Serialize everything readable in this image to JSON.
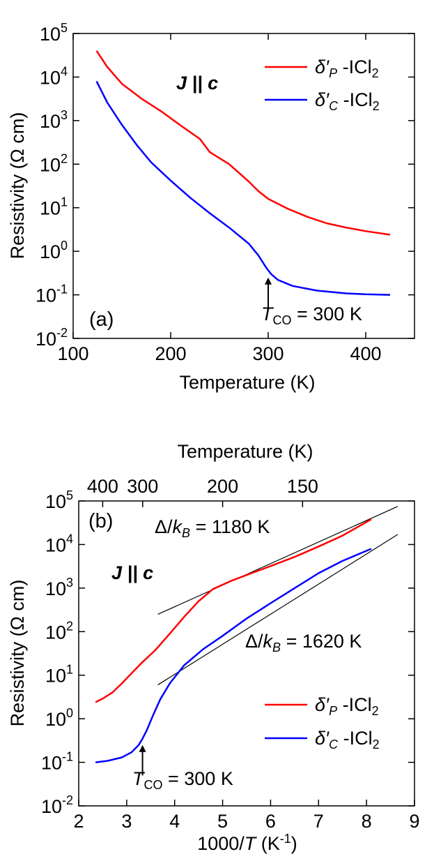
{
  "chart_data": [
    {
      "type": "line",
      "panel_label": "(a)",
      "xlabel": "Temperature (K)",
      "ylabel": "Resistivity (Ω cm)",
      "yscale": "log",
      "xlim": [
        100,
        450
      ],
      "ylim": [
        0.01,
        100000
      ],
      "x_ticks": [
        100,
        200,
        300,
        400
      ],
      "x_tick_labels": [
        "100",
        "200",
        "300",
        "400"
      ],
      "y_ticks": [
        0.01,
        0.1,
        1,
        10,
        100,
        1000,
        10000,
        100000
      ],
      "y_tick_labels": [
        {
          "base": "10",
          "exp": "-2"
        },
        {
          "base": "10",
          "exp": "-1"
        },
        {
          "base": "10",
          "exp": "0"
        },
        {
          "base": "10",
          "exp": "1"
        },
        {
          "base": "10",
          "exp": "2"
        },
        {
          "base": "10",
          "exp": "3"
        },
        {
          "base": "10",
          "exp": "4"
        },
        {
          "base": "10",
          "exp": "5"
        }
      ],
      "annotation_jc": {
        "pre": "J",
        "mid": " || ",
        "post": "c"
      },
      "tco_annotation": {
        "sym": "T",
        "sub": "CO",
        "tail": " = 300 K",
        "arrow_x": 300,
        "arrow_y_from": 0.05,
        "arrow_y_to": 0.25
      },
      "series": [
        {
          "name": "δ′P -ICl2",
          "color": "#ff0000",
          "legend": {
            "sym": "δ′",
            "sub1": "P",
            "mid": " -ICl",
            "sub2": "2"
          },
          "x": [
            124,
            135,
            150,
            170,
            190,
            210,
            230,
            240,
            260,
            280,
            290,
            300,
            320,
            340,
            360,
            380,
            400,
            425
          ],
          "y": [
            40000,
            17000,
            7000,
            3200,
            1650,
            780,
            380,
            190,
            100,
            40,
            24,
            16,
            9.5,
            6.2,
            4.4,
            3.5,
            2.9,
            2.4
          ]
        },
        {
          "name": "δ′C -ICl2",
          "color": "#0000ff",
          "legend": {
            "sym": "δ′",
            "sub1": "C",
            "mid": " -ICl",
            "sub2": "2"
          },
          "x": [
            124,
            135,
            150,
            165,
            180,
            200,
            220,
            240,
            260,
            280,
            290,
            298,
            303,
            310,
            325,
            350,
            380,
            400,
            425
          ],
          "y": [
            8000,
            2600,
            800,
            280,
            110,
            42,
            17,
            7.5,
            3.5,
            1.5,
            0.8,
            0.42,
            0.3,
            0.22,
            0.16,
            0.125,
            0.108,
            0.103,
            0.1
          ]
        }
      ]
    },
    {
      "type": "line",
      "panel_label": "(b)",
      "xlabel": {
        "pre": "1000/",
        "sym": "T",
        "mid": " (K",
        "sup": "-1",
        "post": ")"
      },
      "ylabel": "Resistivity (Ω cm)",
      "top_xlabel": "Temperature (K)",
      "top_x_ticks": [
        400,
        300,
        200,
        150
      ],
      "top_x_tick_labels": [
        "400",
        "300",
        "200",
        "150"
      ],
      "yscale": "log",
      "xlim": [
        2,
        9
      ],
      "ylim": [
        0.01,
        100000
      ],
      "x_ticks": [
        2,
        3,
        4,
        5,
        6,
        7,
        8,
        9
      ],
      "x_tick_labels": [
        "2",
        "3",
        "4",
        "5",
        "6",
        "7",
        "8",
        "9"
      ],
      "y_ticks": [
        0.01,
        0.1,
        1,
        10,
        100,
        1000,
        10000,
        100000
      ],
      "y_tick_labels": [
        {
          "base": "10",
          "exp": "-2"
        },
        {
          "base": "10",
          "exp": "-1"
        },
        {
          "base": "10",
          "exp": "0"
        },
        {
          "base": "10",
          "exp": "1"
        },
        {
          "base": "10",
          "exp": "2"
        },
        {
          "base": "10",
          "exp": "3"
        },
        {
          "base": "10",
          "exp": "4"
        },
        {
          "base": "10",
          "exp": "5"
        }
      ],
      "annotation_jc": {
        "pre": "J",
        "mid": " || ",
        "post": "c"
      },
      "gap_annotations": [
        {
          "pre": "Δ/",
          "sym": "k",
          "sub": "B",
          "tail": " = 1180 K"
        },
        {
          "pre": "Δ/",
          "sym": "k",
          "sub": "B",
          "tail": "  = 1620 K"
        }
      ],
      "tco_annotation": {
        "sym": "T",
        "sub": "CO",
        "tail": " = 300 K",
        "arrow_x": 3.33,
        "arrow_y_from": 0.05,
        "arrow_y_to": 0.25
      },
      "fit_lines": [
        {
          "gap_K": 1180,
          "x": [
            3.65,
            8.65
          ],
          "y": [
            250,
            75000
          ]
        },
        {
          "gap_K": 1620,
          "x": [
            3.65,
            8.65
          ],
          "y": [
            6,
            17000
          ]
        }
      ],
      "series": [
        {
          "name": "δ′P -ICl2",
          "color": "#ff0000",
          "legend": {
            "sym": "δ′",
            "sub1": "P",
            "mid": " -ICl",
            "sub2": "2"
          },
          "x": [
            2.35,
            2.5,
            2.7,
            2.9,
            3.1,
            3.33,
            3.6,
            3.9,
            4.2,
            4.5,
            4.8,
            5.2,
            5.6,
            6.0,
            6.5,
            7.0,
            7.5,
            8.1
          ],
          "y": [
            2.4,
            2.9,
            4.0,
            6.5,
            11,
            20,
            38,
            90,
            220,
            500,
            950,
            1500,
            2200,
            3200,
            5200,
            9000,
            16000,
            38000
          ]
        },
        {
          "name": "δ′C -ICl2",
          "color": "#0000ff",
          "legend": {
            "sym": "δ′",
            "sub1": "C",
            "mid": " -ICl",
            "sub2": "2"
          },
          "x": [
            2.35,
            2.6,
            2.9,
            3.1,
            3.25,
            3.33,
            3.42,
            3.55,
            3.7,
            3.9,
            4.2,
            4.6,
            5.0,
            5.5,
            6.0,
            6.5,
            7.0,
            7.5,
            8.1
          ],
          "y": [
            0.1,
            0.108,
            0.13,
            0.17,
            0.25,
            0.35,
            0.55,
            1.2,
            2.8,
            6.5,
            17,
            40,
            80,
            200,
            450,
            1000,
            2200,
            4200,
            8000
          ]
        }
      ]
    }
  ]
}
